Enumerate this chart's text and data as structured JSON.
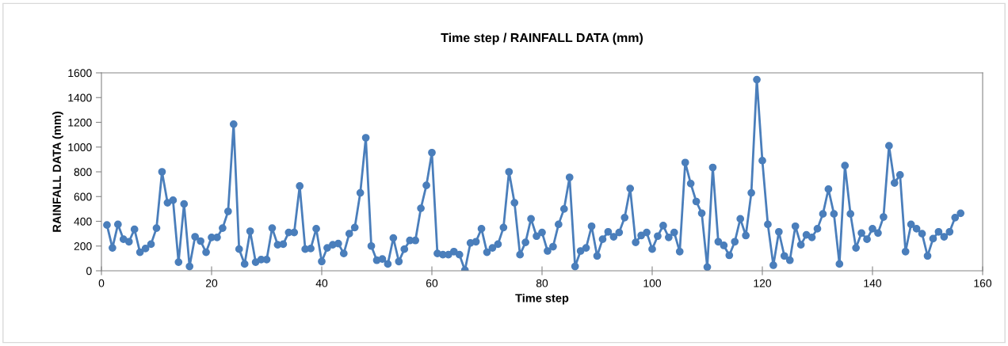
{
  "chart_data": {
    "type": "line",
    "title": "Time step / RAINFALL DATA (mm)",
    "xlabel": "Time step",
    "ylabel": "RAINFALL DATA (mm)",
    "x": [
      1,
      2,
      3,
      4,
      5,
      6,
      7,
      8,
      9,
      10,
      11,
      12,
      13,
      14,
      15,
      16,
      17,
      18,
      19,
      20,
      21,
      22,
      23,
      24,
      25,
      26,
      27,
      28,
      29,
      30,
      31,
      32,
      33,
      34,
      35,
      36,
      37,
      38,
      39,
      40,
      41,
      42,
      43,
      44,
      45,
      46,
      47,
      48,
      49,
      50,
      51,
      52,
      53,
      54,
      55,
      56,
      57,
      58,
      59,
      60,
      61,
      62,
      63,
      64,
      65,
      66,
      67,
      68,
      69,
      70,
      71,
      72,
      73,
      74,
      75,
      76,
      77,
      78,
      79,
      80,
      81,
      82,
      83,
      84,
      85,
      86,
      87,
      88,
      89,
      90,
      91,
      92,
      93,
      94,
      95,
      96,
      97,
      98,
      99,
      100,
      101,
      102,
      103,
      104,
      105,
      106,
      107,
      108,
      109,
      110,
      111,
      112,
      113,
      114,
      115,
      116,
      117,
      118,
      119,
      120,
      121,
      122,
      123,
      124,
      125,
      126,
      127,
      128,
      129,
      130,
      131,
      132,
      133,
      134,
      135,
      136,
      137,
      138,
      139,
      140,
      141,
      142,
      143,
      144,
      145,
      146,
      147,
      148,
      149,
      150,
      151,
      152,
      153,
      154,
      155,
      156
    ],
    "series": [
      {
        "color": "#4a7ebb",
        "values": [
          370,
          185,
          375,
          255,
          235,
          335,
          150,
          180,
          215,
          345,
          800,
          550,
          570,
          70,
          540,
          35,
          275,
          240,
          150,
          270,
          270,
          345,
          480,
          1185,
          175,
          55,
          320,
          70,
          90,
          90,
          345,
          210,
          215,
          310,
          310,
          685,
          175,
          180,
          340,
          75,
          185,
          210,
          220,
          140,
          300,
          350,
          630,
          1075,
          200,
          85,
          95,
          55,
          265,
          75,
          175,
          245,
          245,
          505,
          690,
          955,
          140,
          130,
          130,
          155,
          130,
          5,
          225,
          235,
          340,
          150,
          185,
          215,
          350,
          800,
          550,
          130,
          230,
          420,
          280,
          310,
          160,
          195,
          375,
          500,
          755,
          35,
          160,
          185,
          360,
          120,
          255,
          315,
          275,
          310,
          430,
          665,
          230,
          285,
          310,
          175,
          280,
          365,
          270,
          310,
          155,
          875,
          705,
          560,
          465,
          30,
          835,
          235,
          205,
          125,
          235,
          420,
          285,
          630,
          1545,
          890,
          375,
          45,
          315,
          120,
          85,
          360,
          210,
          290,
          270,
          340,
          460,
          660,
          460,
          55,
          850,
          460,
          185,
          305,
          255,
          340,
          305,
          435,
          1010,
          710,
          775,
          155,
          375,
          340,
          300,
          120,
          260,
          315,
          275,
          315,
          430,
          465
        ]
      }
    ],
    "xlim": [
      0,
      160
    ],
    "xticks": [
      0,
      20,
      40,
      60,
      80,
      100,
      120,
      140,
      160
    ],
    "ylim": [
      0,
      1600
    ],
    "yticks": [
      0,
      200,
      400,
      600,
      800,
      1000,
      1200,
      1400,
      1600
    ],
    "grid": false,
    "marker": "circle",
    "line_style": "solid"
  }
}
